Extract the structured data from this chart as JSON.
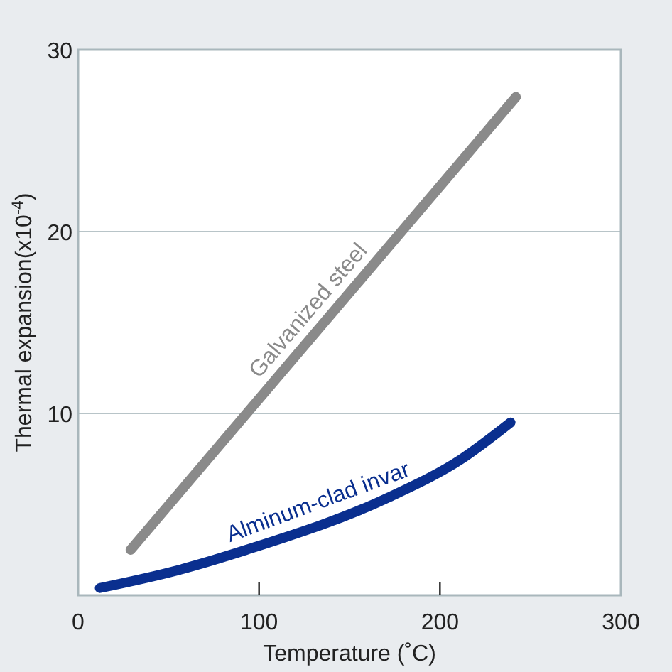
{
  "chart_data": {
    "type": "line",
    "xlabel": "Temperature (˚C)",
    "ylabel": "Thermal expansion(x10$^{-4}$)",
    "xlim": [
      0,
      300
    ],
    "ylim": [
      0,
      30
    ],
    "xticks": [
      0,
      100,
      200,
      300
    ],
    "yticks": [
      10,
      20,
      30
    ],
    "grid": "y",
    "marker": "none",
    "line_style": "solid",
    "series": [
      {
        "name": "Galvanized steel",
        "color": "#8a8a8a",
        "x": [
          29,
          242
        ],
        "values": [
          2.5,
          27.4
        ]
      },
      {
        "name": "Alminum-clad invar",
        "color": "#0a2f8f",
        "x": [
          12,
          54,
          93,
          172,
          212,
          239
        ],
        "values": [
          0.4,
          1.35,
          2.5,
          5.4,
          7.5,
          9.5
        ]
      }
    ]
  }
}
